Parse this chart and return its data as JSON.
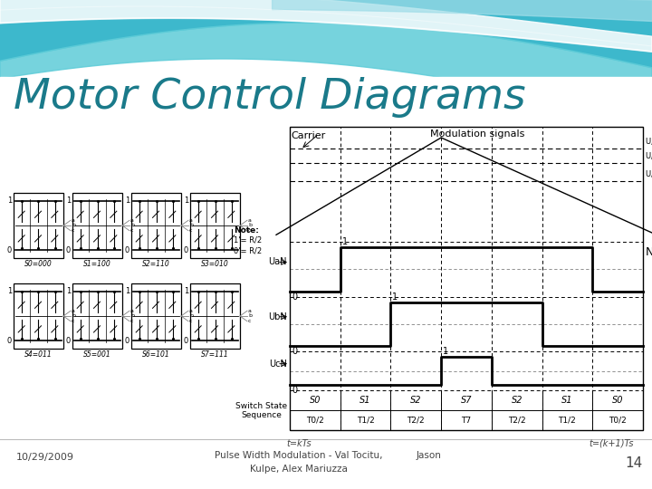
{
  "title": "Motor Control Diagrams",
  "title_color": "#1a7a8a",
  "title_fontsize": 34,
  "footer_date": "10/29/2009",
  "footer_center_line1": "Pulse Width Modulation - Val Tocitu,",
  "footer_center_line2": "Kulpe, Alex Mariuzza",
  "footer_center_extra": "Jason",
  "footer_page": "14",
  "switch_states": [
    "S0",
    "S1",
    "S2",
    "S7",
    "S2",
    "S1",
    "S0"
  ],
  "time_labels": [
    "T0/2",
    "T1/2",
    "T2/2",
    "T7",
    "T2/2",
    "T1/2",
    "T0/2"
  ],
  "circuit_labels_top": [
    "S0=000",
    "S1=100",
    "S2=110",
    "S3=010"
  ],
  "circuit_labels_bot": [
    "S4=011",
    "S5=001",
    "S6=101",
    "S7=111"
  ]
}
